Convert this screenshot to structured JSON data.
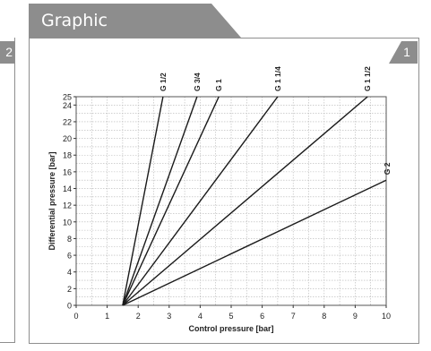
{
  "header": {
    "tab_label": "Graphic",
    "figure_number": "1",
    "previous_figure_number": "2"
  },
  "colors": {
    "tab_gray": "#8d8d8d",
    "border_gray": "#8e8e8e",
    "line": "#1a1a1a",
    "grid": "#b5b5b5"
  },
  "chart_data": {
    "type": "line",
    "title": "",
    "xlabel": "Control pressure [bar]",
    "ylabel": "Differential pressure [bar]",
    "xlim": [
      0,
      10
    ],
    "ylim": [
      0,
      25
    ],
    "xticks": [
      "0",
      "1",
      "2",
      "3",
      "4",
      "5",
      "6",
      "7",
      "8",
      "9",
      "10"
    ],
    "yticks": [
      "0",
      "2",
      "4",
      "6",
      "8",
      "10",
      "12",
      "14",
      "16",
      "18",
      "20",
      "22",
      "24",
      "25"
    ],
    "grid": true,
    "series": [
      {
        "name": "G 1/2",
        "x": [
          1.5,
          2.8
        ],
        "y": [
          0,
          25
        ]
      },
      {
        "name": "G 3/4",
        "x": [
          1.5,
          3.9
        ],
        "y": [
          0,
          25
        ]
      },
      {
        "name": "G 1",
        "x": [
          1.5,
          4.6
        ],
        "y": [
          0,
          25
        ]
      },
      {
        "name": "G 1 1/4",
        "x": [
          1.5,
          6.5
        ],
        "y": [
          0,
          25
        ]
      },
      {
        "name": "G 1 1/2",
        "x": [
          1.5,
          9.4
        ],
        "y": [
          0,
          25
        ]
      },
      {
        "name": "G 2",
        "x": [
          1.5,
          10
        ],
        "y": [
          0,
          15
        ]
      }
    ]
  }
}
